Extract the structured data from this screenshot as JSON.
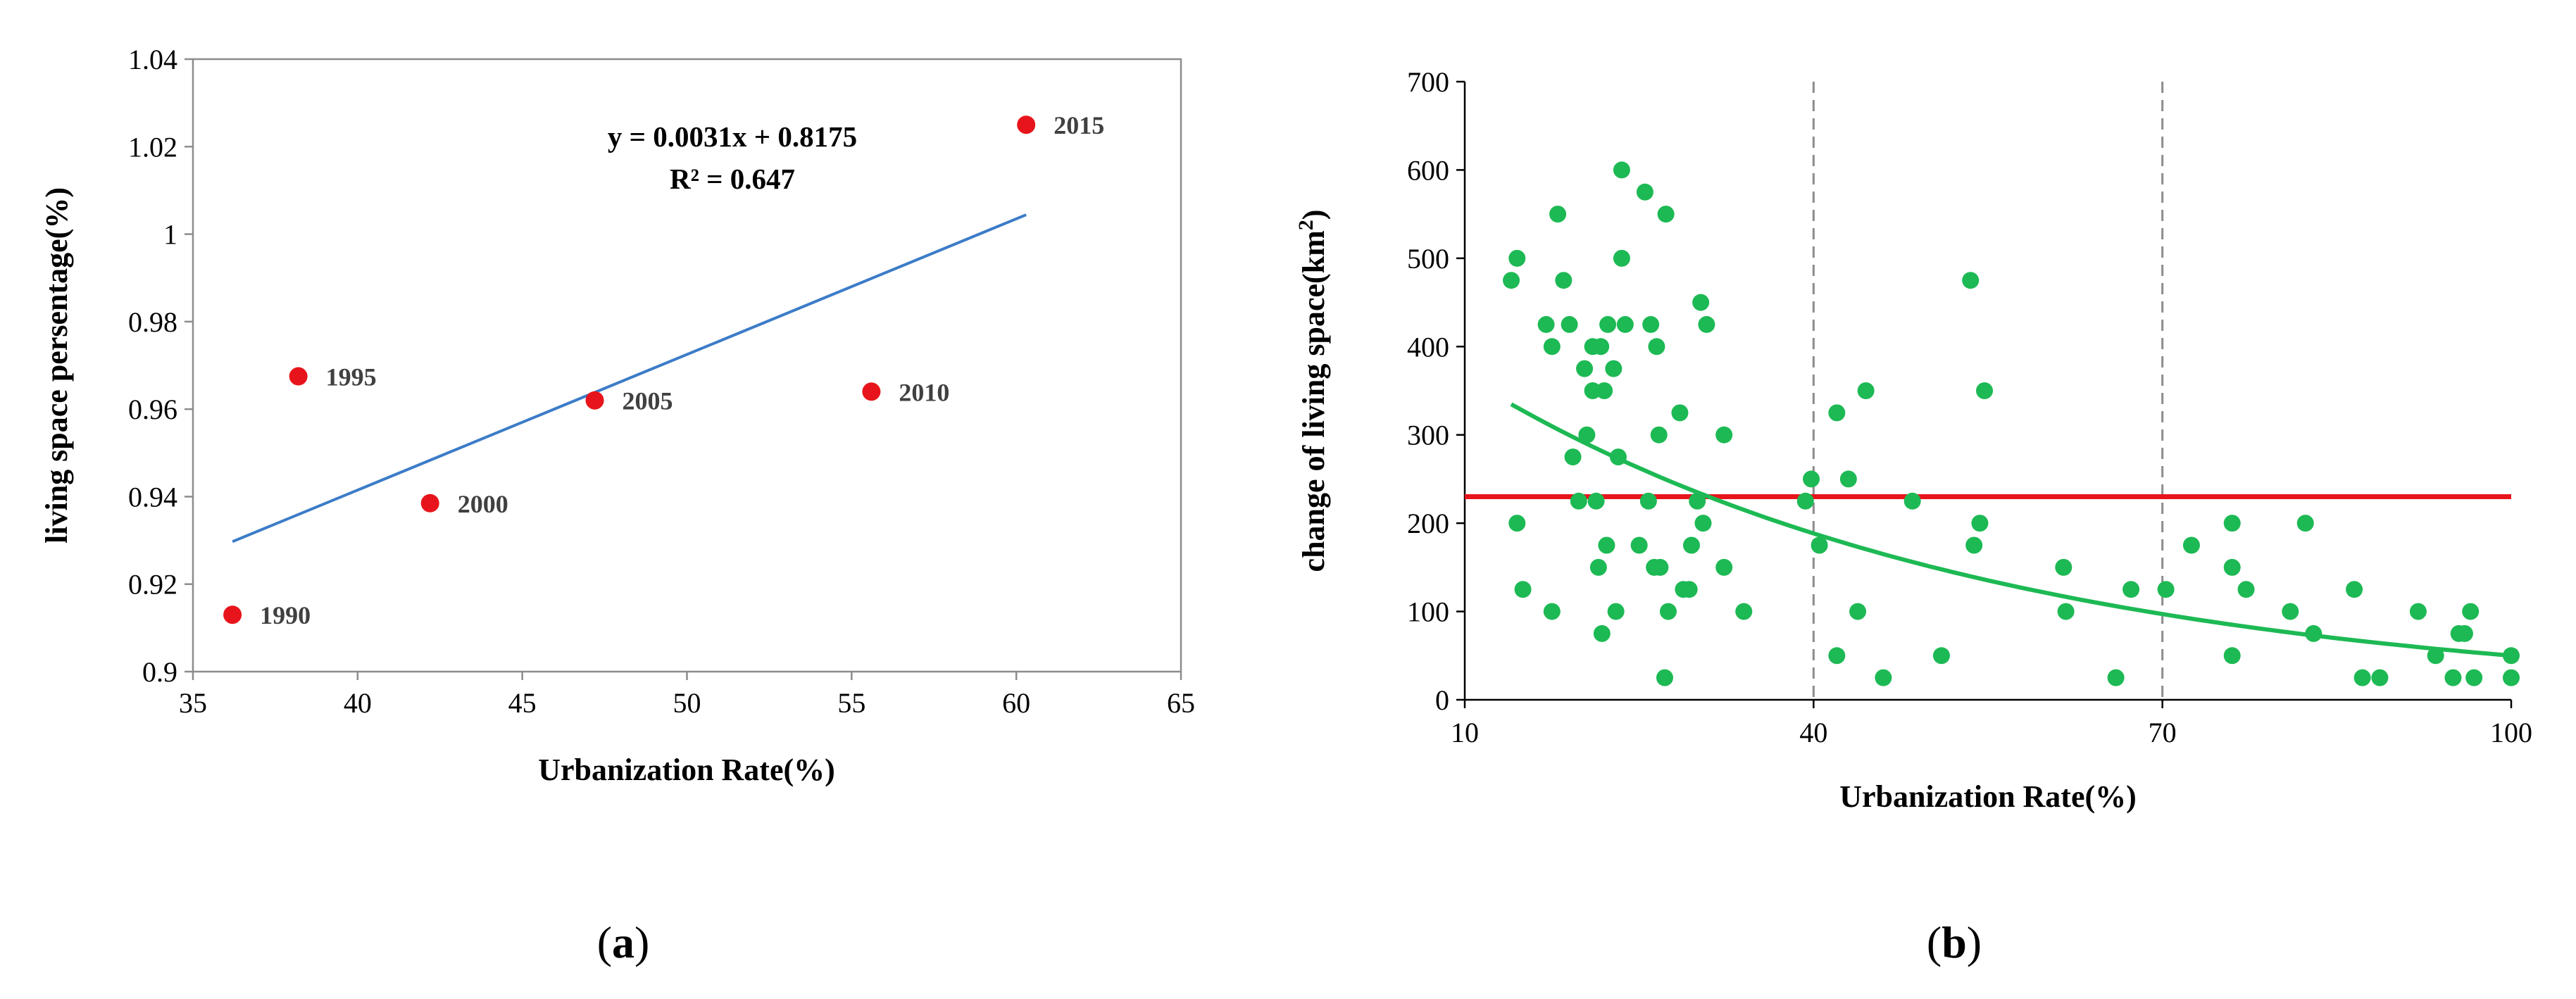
{
  "chart_data": [
    {
      "id": "a",
      "type": "scatter",
      "caption_open": "(",
      "caption_letter": "a",
      "caption_close": ")",
      "xlabel": "Urbanization Rate(%)",
      "ylabel": "living space persentage(%)",
      "xlim": [
        35,
        65
      ],
      "ylim": [
        0.9,
        1.04
      ],
      "xticks": [
        35,
        40,
        45,
        50,
        55,
        60,
        65
      ],
      "xtick_labels": [
        "35",
        "40",
        "45",
        "50",
        "55",
        "60",
        "65"
      ],
      "yticks": [
        0.9,
        0.92,
        0.94,
        0.96,
        0.98,
        1.0,
        1.02,
        1.04
      ],
      "ytick_labels": [
        "0.9",
        "0.92",
        "0.94",
        "0.96",
        "0.98",
        "1",
        "1.02",
        "1.04"
      ],
      "points": [
        {
          "label": "1990",
          "x": 36.2,
          "y": 0.913
        },
        {
          "label": "1995",
          "x": 38.2,
          "y": 0.9675
        },
        {
          "label": "2000",
          "x": 42.2,
          "y": 0.9385
        },
        {
          "label": "2005",
          "x": 47.2,
          "y": 0.962
        },
        {
          "label": "2010",
          "x": 55.6,
          "y": 0.964
        },
        {
          "label": "2015",
          "x": 60.3,
          "y": 1.025
        }
      ],
      "trendline": {
        "type": "linear",
        "slope": 0.0031,
        "intercept": 0.8175,
        "x_range": [
          36.2,
          60.3
        ]
      },
      "equation_text": "y = 0.0031x + 0.8175",
      "r2_text": "R² = 0.647",
      "point_color": "#e8141b",
      "line_color": "#3c7cc7"
    },
    {
      "id": "b",
      "type": "scatter",
      "caption_open": "(",
      "caption_letter": "b",
      "caption_close": ")",
      "xlabel": "Urbanization Rate(%)",
      "ylabel_main": "change of living  space(km",
      "ylabel_sup": "2",
      "ylabel_close": ")",
      "xlim": [
        10,
        100
      ],
      "ylim": [
        0,
        700
      ],
      "xticks": [
        10,
        40,
        70,
        100
      ],
      "xtick_labels": [
        "10",
        "40",
        "70",
        "100"
      ],
      "yticks": [
        0,
        100,
        200,
        300,
        400,
        500,
        600,
        700
      ],
      "ytick_labels": [
        "0",
        "100",
        "200",
        "300",
        "400",
        "500",
        "600",
        "700"
      ],
      "vlines": [
        40,
        70
      ],
      "hline": 230,
      "curve": {
        "type": "exponential",
        "a": 456,
        "b": -0.0221,
        "x_range": [
          14,
          100
        ]
      },
      "point_color": "#1db954",
      "hline_color": "#e8141b",
      "curve_color": "#1db954",
      "points": [
        [
          14,
          475
        ],
        [
          14.5,
          500
        ],
        [
          14.5,
          200
        ],
        [
          15,
          125
        ],
        [
          17,
          425
        ],
        [
          17.5,
          100
        ],
        [
          17.5,
          400
        ],
        [
          18,
          550
        ],
        [
          18.5,
          475
        ],
        [
          19,
          425
        ],
        [
          19.3,
          275
        ],
        [
          19.8,
          225
        ],
        [
          20.3,
          375
        ],
        [
          20.5,
          300
        ],
        [
          21,
          350
        ],
        [
          21,
          400
        ],
        [
          21.3,
          225
        ],
        [
          21.5,
          150
        ],
        [
          21.7,
          400
        ],
        [
          21.8,
          75
        ],
        [
          22,
          350
        ],
        [
          22.2,
          175
        ],
        [
          22.3,
          425
        ],
        [
          22.8,
          375
        ],
        [
          23,
          100
        ],
        [
          23.2,
          275
        ],
        [
          23.5,
          500
        ],
        [
          23.5,
          600
        ],
        [
          23.8,
          425
        ],
        [
          25,
          175
        ],
        [
          25.5,
          575
        ],
        [
          25.8,
          225
        ],
        [
          26,
          425
        ],
        [
          26.3,
          150
        ],
        [
          26.5,
          400
        ],
        [
          26.7,
          300
        ],
        [
          26.8,
          150
        ],
        [
          27.2,
          25
        ],
        [
          27.3,
          550
        ],
        [
          27.5,
          100
        ],
        [
          28.5,
          325
        ],
        [
          28.8,
          125
        ],
        [
          29.3,
          125
        ],
        [
          29.5,
          175
        ],
        [
          30,
          225
        ],
        [
          30.3,
          450
        ],
        [
          30.5,
          200
        ],
        [
          30.8,
          425
        ],
        [
          32.3,
          300
        ],
        [
          32.3,
          150
        ],
        [
          34,
          100
        ],
        [
          39.3,
          225
        ],
        [
          39.8,
          250
        ],
        [
          40.5,
          175
        ],
        [
          42,
          325
        ],
        [
          42,
          50
        ],
        [
          43,
          250
        ],
        [
          43.8,
          100
        ],
        [
          44.5,
          350
        ],
        [
          46,
          25
        ],
        [
          48.5,
          225
        ],
        [
          51,
          50
        ],
        [
          53.5,
          475
        ],
        [
          53.8,
          175
        ],
        [
          54.3,
          200
        ],
        [
          54.7,
          350
        ],
        [
          61.5,
          150
        ],
        [
          61.7,
          100
        ],
        [
          66,
          25
        ],
        [
          67.3,
          125
        ],
        [
          70.3,
          125
        ],
        [
          72.5,
          175
        ],
        [
          76,
          200
        ],
        [
          76,
          150
        ],
        [
          76,
          50
        ],
        [
          77.2,
          125
        ],
        [
          81,
          100
        ],
        [
          82.3,
          200
        ],
        [
          83,
          75
        ],
        [
          86.5,
          125
        ],
        [
          87.2,
          25
        ],
        [
          88.7,
          25
        ],
        [
          92,
          100
        ],
        [
          93.5,
          50
        ],
        [
          95,
          25
        ],
        [
          95.5,
          75
        ],
        [
          96,
          75
        ],
        [
          96.5,
          100
        ],
        [
          96.8,
          25
        ],
        [
          100,
          50
        ],
        [
          100,
          25
        ]
      ]
    }
  ]
}
